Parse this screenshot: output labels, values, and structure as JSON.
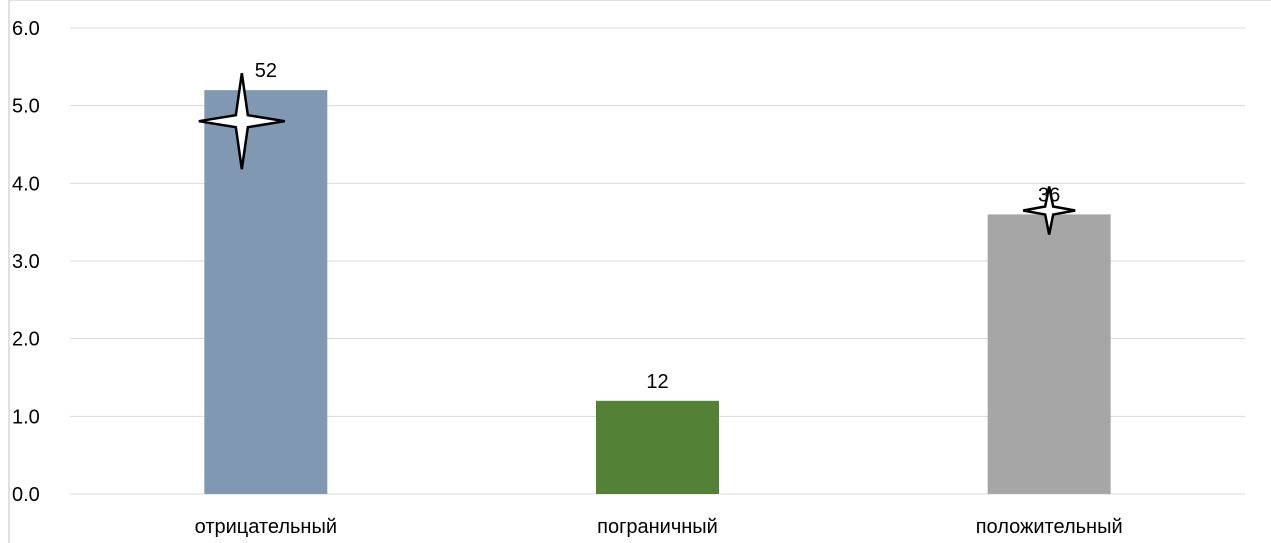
{
  "chart_data": {
    "type": "bar",
    "title": "",
    "xlabel": "",
    "ylabel": "",
    "ylim": [
      0,
      6
    ],
    "y_ticks": [
      "0.0",
      "1.0",
      "2.0",
      "3.0",
      "4.0",
      "5.0",
      "6.0"
    ],
    "grid": true,
    "legend": "none",
    "categories": [
      "отрицательный",
      "пограничный",
      "положительный"
    ],
    "values": [
      5.2,
      1.2,
      3.6
    ],
    "data_labels": [
      "52",
      "12",
      "36"
    ],
    "colors": [
      "#8098b1",
      "#538135",
      "#a6a6a6"
    ],
    "markers": [
      {
        "category_index": 0,
        "shape": "four-point-star",
        "value": 4.8,
        "size": "large"
      },
      {
        "category_index": 2,
        "shape": "four-point-star",
        "value": 3.65,
        "size": "small"
      }
    ]
  }
}
